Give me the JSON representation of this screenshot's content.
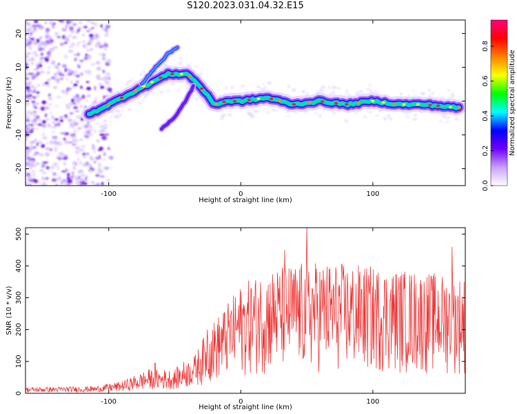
{
  "title": "S120.2023.031.04.32.E15",
  "chart_data": [
    {
      "type": "heatmap",
      "xlabel": "Height of straight line (km)",
      "ylabel": "Frequency (Hz)",
      "xlim": [
        -163,
        170
      ],
      "ylim": [
        -25,
        24
      ],
      "xticks": [
        -100,
        0,
        100
      ],
      "yticks": [
        -20,
        -10,
        0,
        10,
        20
      ],
      "colorbar": {
        "label": "Normalized spectral amplitude",
        "range": [
          0,
          0.95
        ],
        "ticks": [
          0.0,
          0.2,
          0.4,
          0.6,
          0.8
        ],
        "colors": [
          "#ffffff",
          "#c8a0ff",
          "#7000ff",
          "#0000ff",
          "#00ffff",
          "#00ff00",
          "#ffff00",
          "#ff8000",
          "#ff0000",
          "#ff0080"
        ]
      },
      "ridge": [
        {
          "x": -115,
          "y": -4
        },
        {
          "x": -100,
          "y": -1
        },
        {
          "x": -85,
          "y": 2
        },
        {
          "x": -70,
          "y": 5
        },
        {
          "x": -55,
          "y": 8
        },
        {
          "x": -40,
          "y": 8
        },
        {
          "x": -30,
          "y": 4
        },
        {
          "x": -20,
          "y": -1
        },
        {
          "x": -10,
          "y": 0
        },
        {
          "x": 0,
          "y": 0
        },
        {
          "x": 20,
          "y": 1
        },
        {
          "x": 40,
          "y": -1
        },
        {
          "x": 60,
          "y": 0
        },
        {
          "x": 80,
          "y": -1
        },
        {
          "x": 100,
          "y": 0
        },
        {
          "x": 120,
          "y": -1
        },
        {
          "x": 140,
          "y": -1
        },
        {
          "x": 165,
          "y": -2
        }
      ],
      "branches": [
        [
          {
            "x": -75,
            "y": 5
          },
          {
            "x": -65,
            "y": 10
          },
          {
            "x": -55,
            "y": 14
          },
          {
            "x": -48,
            "y": 16
          }
        ],
        [
          {
            "x": -60,
            "y": -8
          },
          {
            "x": -50,
            "y": -5
          },
          {
            "x": -42,
            "y": 0
          },
          {
            "x": -35,
            "y": 5
          }
        ]
      ]
    },
    {
      "type": "line",
      "xlabel": "Height of straight line (km)",
      "ylabel": "SNR (10 * v/v)",
      "xlim": [
        -163,
        170
      ],
      "ylim": [
        0,
        520
      ],
      "xticks": [
        -100,
        0,
        100
      ],
      "yticks": [
        0,
        100,
        200,
        300,
        400,
        500
      ],
      "color": "#ee3333",
      "envelope": [
        {
          "x": -163,
          "y": 10
        },
        {
          "x": -110,
          "y": 12
        },
        {
          "x": -90,
          "y": 20
        },
        {
          "x": -70,
          "y": 40
        },
        {
          "x": -50,
          "y": 40
        },
        {
          "x": -35,
          "y": 70
        },
        {
          "x": -25,
          "y": 120
        },
        {
          "x": -15,
          "y": 150
        },
        {
          "x": 0,
          "y": 200
        },
        {
          "x": 20,
          "y": 230
        },
        {
          "x": 40,
          "y": 240
        },
        {
          "x": 60,
          "y": 245
        },
        {
          "x": 80,
          "y": 240
        },
        {
          "x": 100,
          "y": 235
        },
        {
          "x": 120,
          "y": 230
        },
        {
          "x": 140,
          "y": 225
        },
        {
          "x": 170,
          "y": 215
        }
      ],
      "peaks": [
        {
          "x": 50,
          "y": 520
        },
        {
          "x": 33,
          "y": 450
        },
        {
          "x": 160,
          "y": 460
        },
        {
          "x": -65,
          "y": 95
        },
        {
          "x": -25,
          "y": 200
        }
      ]
    }
  ]
}
